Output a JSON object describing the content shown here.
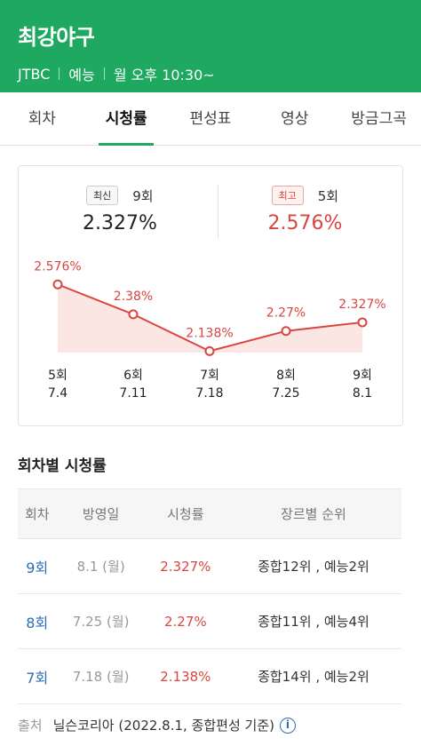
{
  "header": {
    "title": "최강야구",
    "channel": "JTBC",
    "genre": "예능",
    "schedule": "월 오후 10:30~"
  },
  "tabs": [
    {
      "label": "회차",
      "active": false
    },
    {
      "label": "시청률",
      "active": true
    },
    {
      "label": "편성표",
      "active": false
    },
    {
      "label": "영상",
      "active": false
    },
    {
      "label": "방금그곡",
      "active": false
    }
  ],
  "summary": {
    "latest": {
      "badge": "최신",
      "episode": "9회",
      "rating": "2.327%"
    },
    "highest": {
      "badge": "최고",
      "episode": "5회",
      "rating": "2.576%"
    }
  },
  "chart_data": {
    "type": "area",
    "categories": [
      "5회",
      "6회",
      "7회",
      "8회",
      "9회"
    ],
    "dates": [
      "7.4",
      "7.11",
      "7.18",
      "7.25",
      "8.1"
    ],
    "values": [
      2.576,
      2.38,
      2.138,
      2.27,
      2.327
    ],
    "labels": [
      "2.576%",
      "2.38%",
      "2.138%",
      "2.27%",
      "2.327%"
    ],
    "ylim": [
      2.0,
      2.7
    ],
    "colors": {
      "line": "#d9463f",
      "fill": "#fbe6e4"
    }
  },
  "table": {
    "title": "회차별 시청률",
    "headers": [
      "회차",
      "방영일",
      "시청률",
      "장르별 순위"
    ],
    "rows": [
      {
        "ep": "9회",
        "date": "8.1 (월)",
        "rating": "2.327%",
        "rank": "종합12위 , 예능2위"
      },
      {
        "ep": "8회",
        "date": "7.25 (월)",
        "rating": "2.27%",
        "rank": "종합11위 , 예능4위"
      },
      {
        "ep": "7회",
        "date": "7.18 (월)",
        "rating": "2.138%",
        "rank": "종합14위 , 예능2위"
      }
    ]
  },
  "source": {
    "label": "출처",
    "text": "닐슨코리아 (2022.8.1, 종합편성 기준)",
    "icon": "info-icon"
  }
}
